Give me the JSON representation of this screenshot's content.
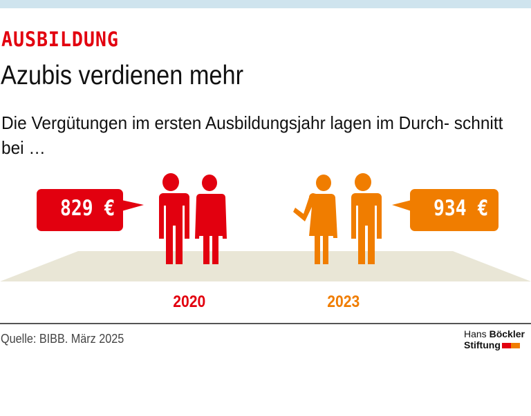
{
  "header": {
    "kicker": "AUSBILDUNG",
    "title": "Azubis verdienen mehr",
    "subtitle": "Die Vergütungen im ersten Ausbildungsjahr lagen im Durch- schnitt bei …"
  },
  "groups": [
    {
      "year": "2020",
      "value_label": "829 €",
      "value": 829,
      "color": "#e2000f",
      "icons": [
        "man-figure",
        "woman-figure"
      ]
    },
    {
      "year": "2023",
      "value_label": "934 €",
      "value": 934,
      "color": "#f07d00",
      "icons": [
        "woman-waving-figure",
        "man-figure"
      ]
    }
  ],
  "colors": {
    "ground": "#e9e6d6",
    "topbar": "#cfe4ee"
  },
  "footer": {
    "source": "Quelle: BIBB. März 2025",
    "logo_line1_a": "Hans ",
    "logo_line1_b": "Böckler",
    "logo_line2": "Stiftung"
  }
}
